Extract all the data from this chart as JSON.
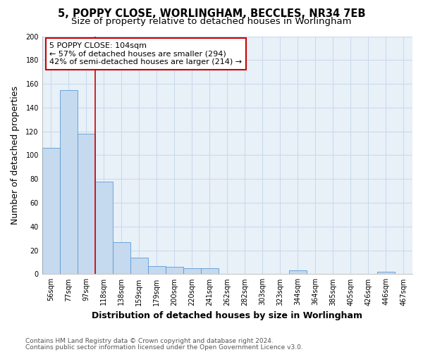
{
  "title_line1": "5, POPPY CLOSE, WORLINGHAM, BECCLES, NR34 7EB",
  "title_line2": "Size of property relative to detached houses in Worlingham",
  "xlabel": "Distribution of detached houses by size in Worlingham",
  "ylabel": "Number of detached properties",
  "bar_labels": [
    "56sqm",
    "77sqm",
    "97sqm",
    "118sqm",
    "138sqm",
    "159sqm",
    "179sqm",
    "200sqm",
    "220sqm",
    "241sqm",
    "262sqm",
    "282sqm",
    "303sqm",
    "323sqm",
    "344sqm",
    "364sqm",
    "385sqm",
    "405sqm",
    "426sqm",
    "446sqm",
    "467sqm"
  ],
  "bar_values": [
    106,
    155,
    118,
    78,
    27,
    14,
    7,
    6,
    5,
    5,
    0,
    0,
    0,
    0,
    3,
    0,
    0,
    0,
    0,
    2,
    0
  ],
  "bar_color": "#c5d9ef",
  "bar_edge_color": "#5b9bd5",
  "vline_color": "#cc0000",
  "annotation_text": "5 POPPY CLOSE: 104sqm\n← 57% of detached houses are smaller (294)\n42% of semi-detached houses are larger (214) →",
  "annotation_box_color": "#cc0000",
  "ylim": [
    0,
    200
  ],
  "yticks": [
    0,
    20,
    40,
    60,
    80,
    100,
    120,
    140,
    160,
    180,
    200
  ],
  "grid_color": "#c8d8ec",
  "bg_color": "#e8f0f8",
  "footer_line1": "Contains HM Land Registry data © Crown copyright and database right 2024.",
  "footer_line2": "Contains public sector information licensed under the Open Government Licence v3.0.",
  "title_fontsize": 10.5,
  "subtitle_fontsize": 9.5,
  "axis_label_fontsize": 9,
  "tick_fontsize": 7,
  "annotation_fontsize": 8,
  "footer_fontsize": 6.5
}
